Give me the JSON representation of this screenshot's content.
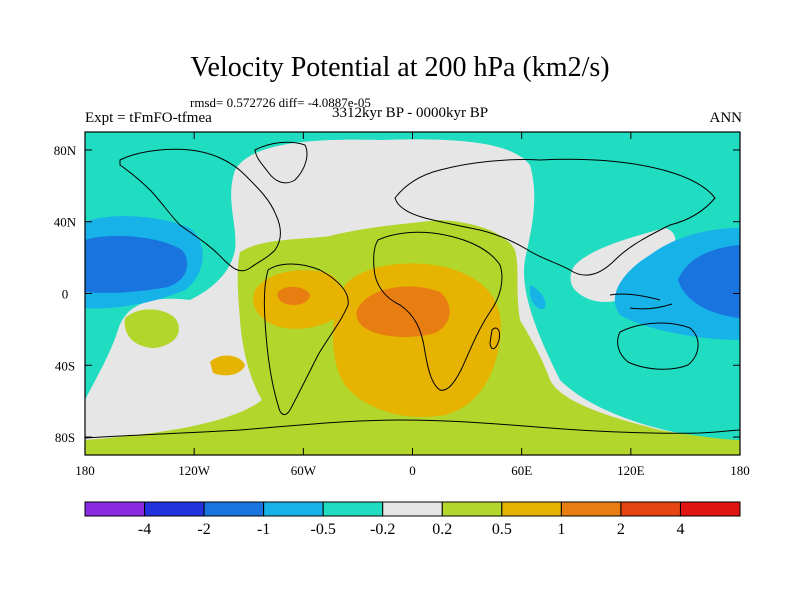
{
  "title": "Velocity Potential at 200 hPa (km2/s)",
  "stats": "rmsd= 0.572726  diff= -4.0887e-05",
  "experiment": "Expt = tFmFO-tfmea",
  "period": "3312kyr BP - 0000kyr BP",
  "season": "ANN",
  "map": {
    "lon_range": [
      -180,
      180
    ],
    "lat_range": [
      -90,
      90
    ],
    "x_ticks": [
      {
        "lon": -180,
        "label": "180"
      },
      {
        "lon": -120,
        "label": "120W"
      },
      {
        "lon": -60,
        "label": "60W"
      },
      {
        "lon": 0,
        "label": "0"
      },
      {
        "lon": 60,
        "label": "60E"
      },
      {
        "lon": 120,
        "label": "120E"
      },
      {
        "lon": 180,
        "label": "180"
      }
    ],
    "y_ticks": [
      {
        "lat": 80,
        "label": "80N"
      },
      {
        "lat": 40,
        "label": "40N"
      },
      {
        "lat": 0,
        "label": "0"
      },
      {
        "lat": -40,
        "label": "40S"
      },
      {
        "lat": -80,
        "label": "80S"
      }
    ]
  },
  "colorbar": {
    "colors": [
      "#8a2be2",
      "#2233dd",
      "#1a74e0",
      "#17b3e8",
      "#20dcc0",
      "#e6e6e6",
      "#b3d62c",
      "#e6b400",
      "#e87e12",
      "#e64410",
      "#e01512"
    ],
    "labels": [
      "-4",
      "-2",
      "-1",
      "-0.5",
      "-0.2",
      "0.2",
      "0.5",
      "1",
      "2",
      "4"
    ]
  }
}
